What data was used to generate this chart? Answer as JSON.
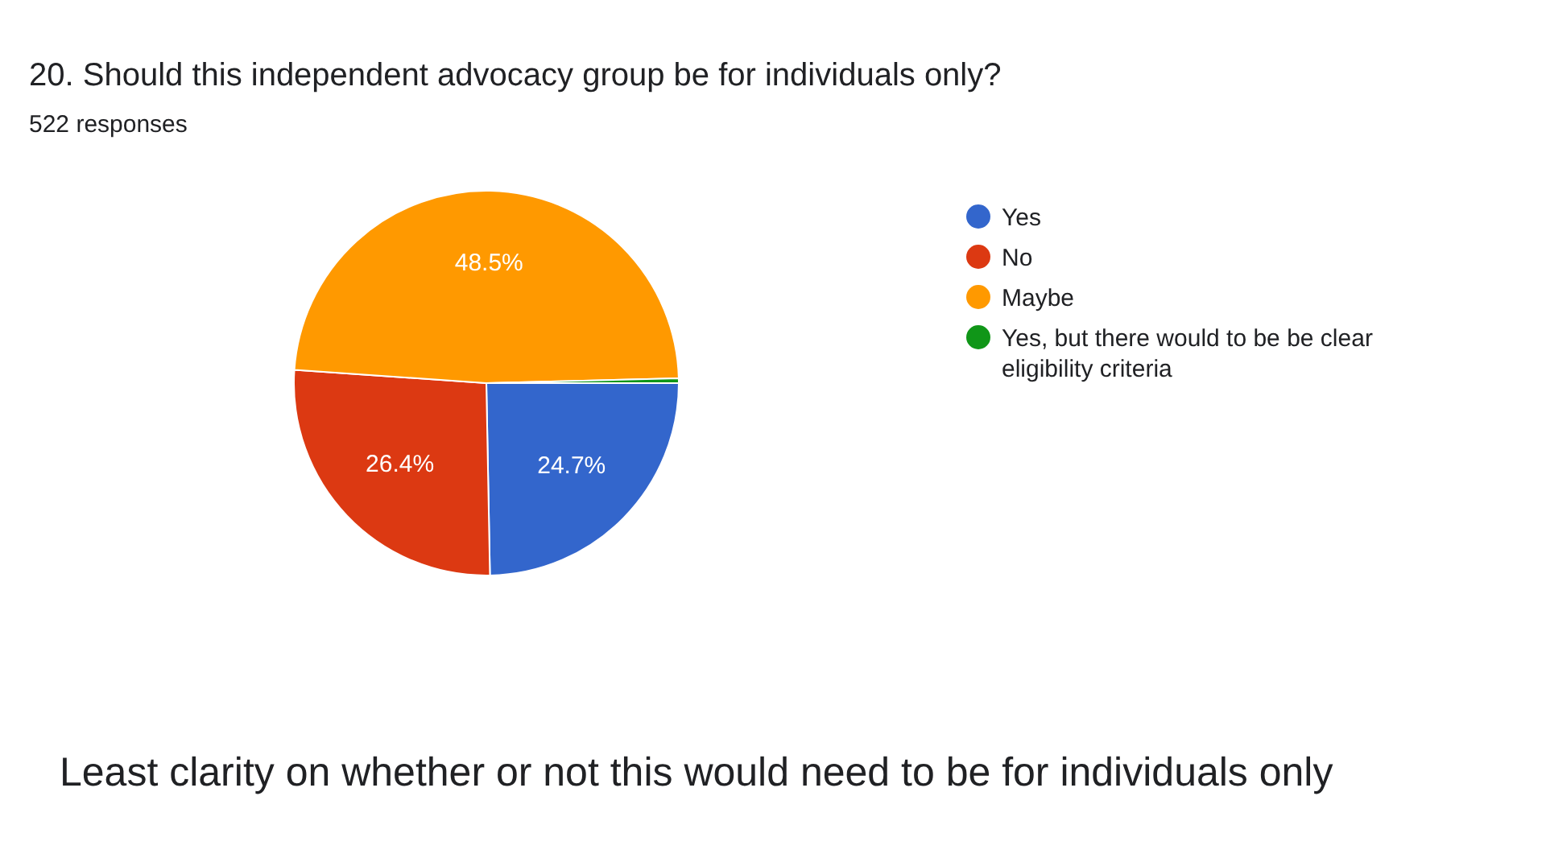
{
  "chart_data": {
    "type": "pie",
    "title": "20. Should this independent advocacy group be for individuals only?",
    "subtitle": "522 responses",
    "categories": [
      "Yes",
      "No",
      "Maybe",
      "Yes, but there would to be be clear eligibility criteria"
    ],
    "values": [
      24.7,
      26.4,
      48.5,
      0.4
    ],
    "colors": [
      "#3366cc",
      "#dc3912",
      "#ff9900",
      "#109618"
    ],
    "value_labels": [
      "24.7%",
      "26.4%",
      "48.5%",
      null
    ],
    "legend": "right",
    "annotations": [
      "Least clarity on whether or not this would need to be for individuals only"
    ]
  }
}
